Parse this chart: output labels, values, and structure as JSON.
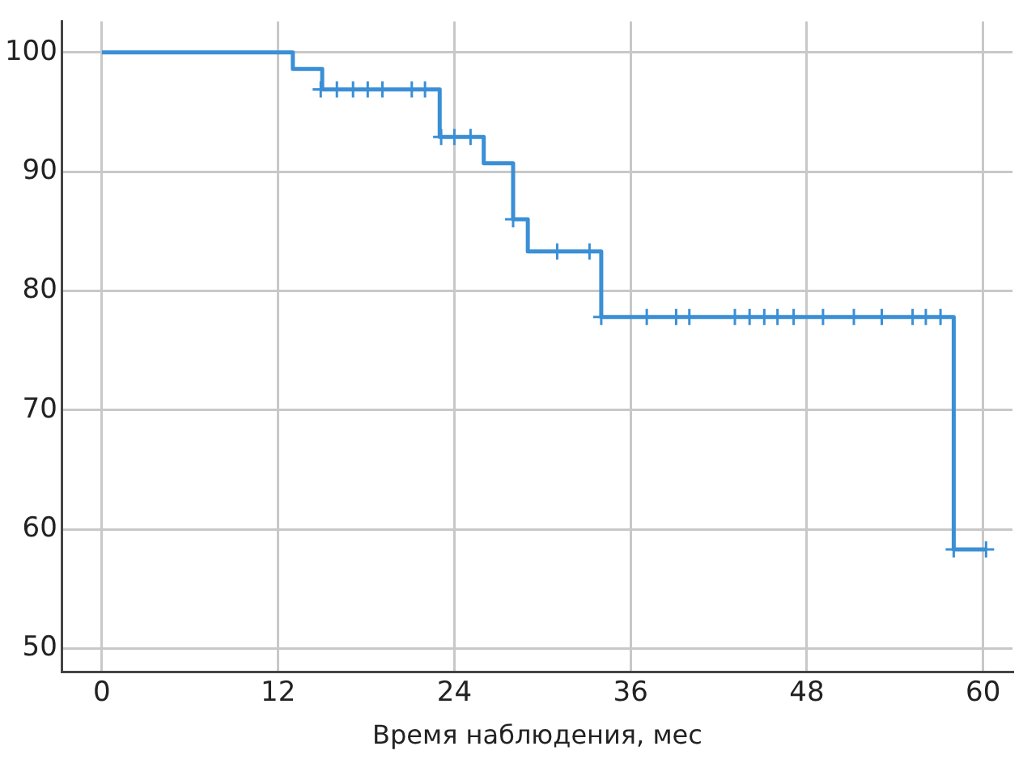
{
  "chart_data": {
    "type": "step",
    "xlabel": "Время наблюдения, мес",
    "xlim": [
      -2.7,
      62
    ],
    "xticks": [
      0,
      12,
      24,
      36,
      48,
      60
    ],
    "ylim": [
      48,
      102.6
    ],
    "yticks": [
      50,
      60,
      70,
      80,
      90,
      100
    ],
    "grid": true,
    "legend": false,
    "series": [
      {
        "type": "step",
        "color": "#3a8fd6",
        "marker": "none",
        "x": [
          0,
          13,
          15,
          23,
          26,
          28,
          29,
          34,
          58,
          60.2
        ],
        "values": [
          100,
          98.6,
          96.9,
          92.9,
          90.7,
          86,
          83.3,
          77.8,
          58.3,
          58.3
        ]
      },
      {
        "type": "scatter",
        "color": "#3a8fd6",
        "marker": "cross",
        "x": [
          14.9,
          16,
          17.1,
          18.1,
          19.1,
          21.1,
          22,
          23.1,
          24,
          25.1,
          28,
          31,
          33.2,
          34,
          37.1,
          39.1,
          40,
          43.1,
          44.1,
          45.1,
          46,
          47.1,
          49.1,
          51.2,
          53.1,
          55.2,
          56.1,
          57.1,
          58,
          60.2
        ],
        "values": [
          96.9,
          96.9,
          96.9,
          96.9,
          96.9,
          96.9,
          96.9,
          92.9,
          92.9,
          92.9,
          86,
          83.3,
          83.3,
          77.8,
          77.8,
          77.8,
          77.8,
          77.8,
          77.8,
          77.8,
          77.8,
          77.8,
          77.8,
          77.8,
          77.8,
          77.8,
          77.8,
          77.8,
          58.3,
          58.3
        ]
      }
    ]
  }
}
